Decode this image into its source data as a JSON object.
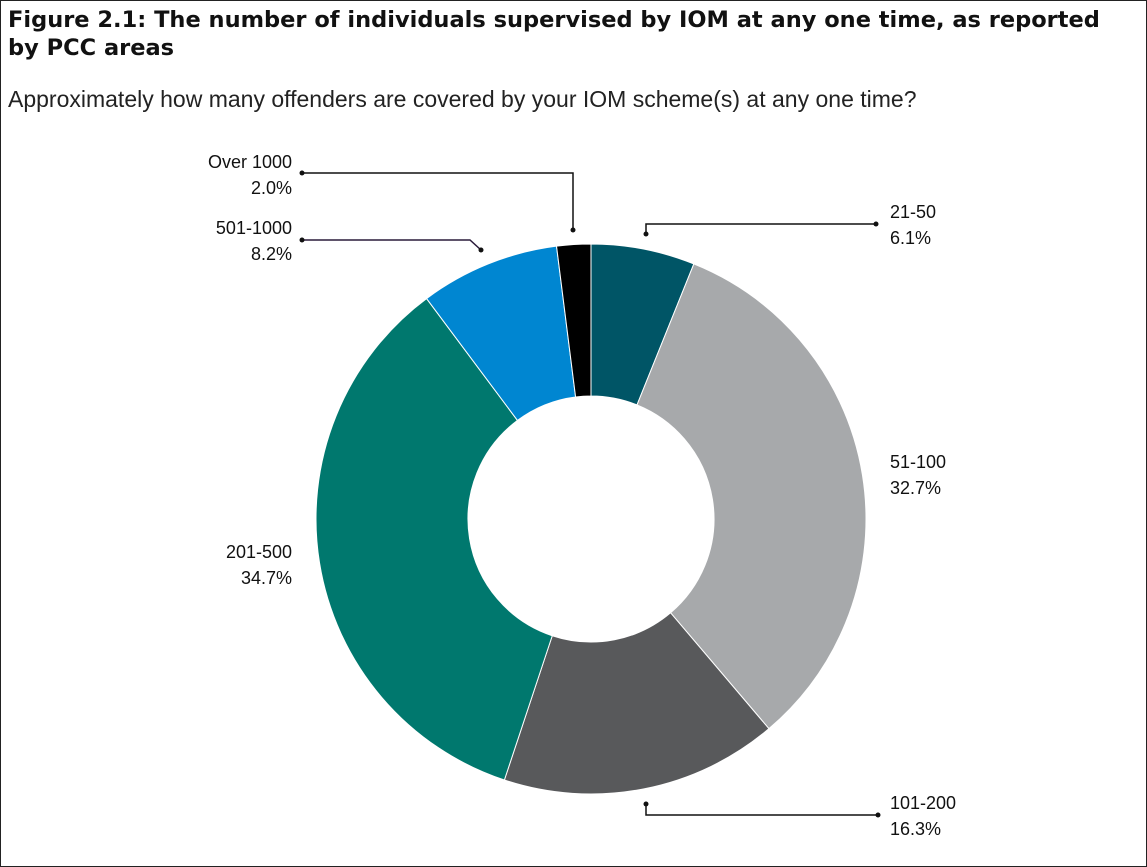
{
  "chart_data": {
    "type": "pie",
    "donut": true,
    "title": "Figure 2.1: The number of individuals supervised by IOM at any one time, as reported by PCC areas",
    "subtitle": "Approximately how many offenders are covered by your IOM scheme(s) at any one time?",
    "categories": [
      "21-50",
      "51-100",
      "101-200",
      "201-500",
      "501-1000",
      "Over 1000"
    ],
    "values": [
      6.1,
      32.7,
      16.3,
      34.7,
      8.2,
      2.0
    ],
    "labels": [
      "6.1%",
      "32.7%",
      "16.3%",
      "34.7%",
      "8.2%",
      "2.0%"
    ],
    "colors": [
      "#005566",
      "#a7a9ab",
      "#58595b",
      "#00786e",
      "#0086d1",
      "#000000"
    ],
    "legend": "none"
  }
}
